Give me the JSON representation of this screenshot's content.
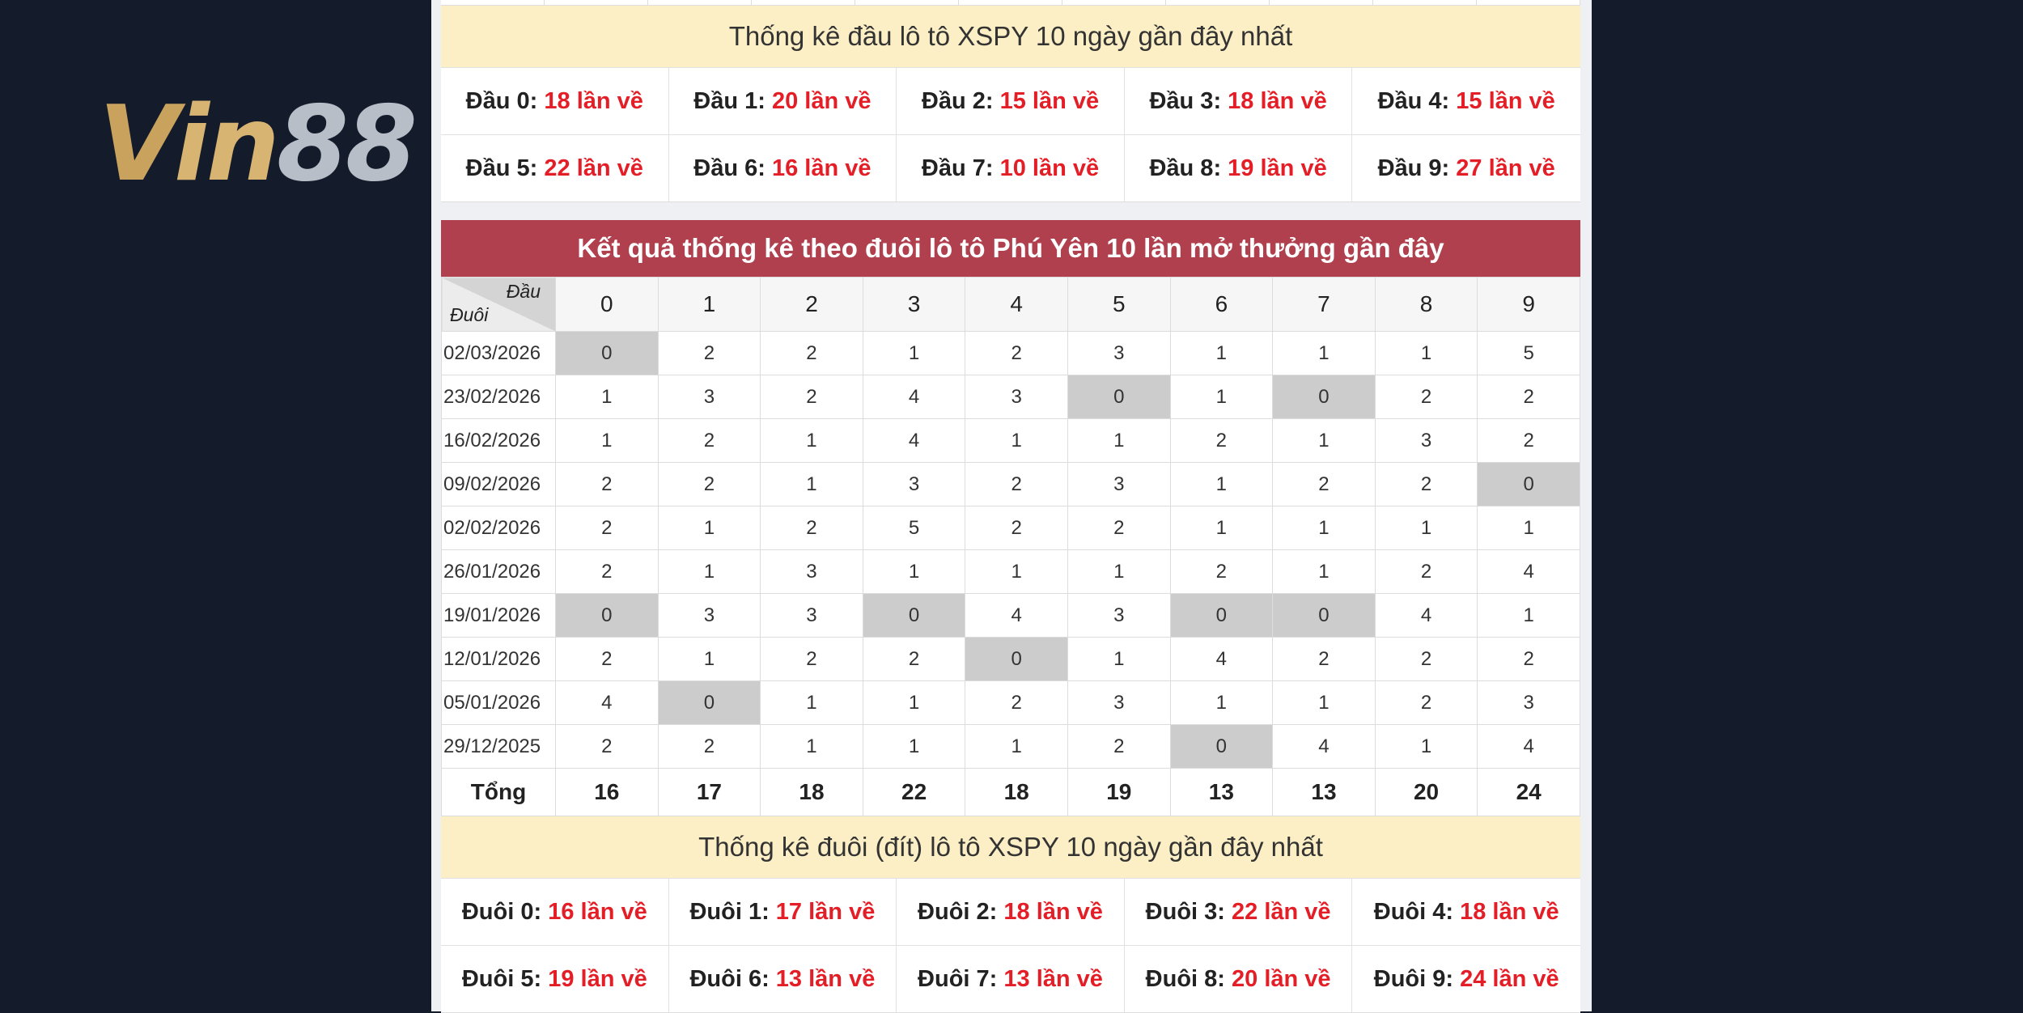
{
  "logo": {
    "part1": "V",
    "part2": "in",
    "part3": "88"
  },
  "head_stats": {
    "title": "Thống kê đầu lô tô XSPY 10 ngày gần đây nhất",
    "items": [
      {
        "label": "Đầu 0:",
        "value": "18 lần về"
      },
      {
        "label": "Đầu 1:",
        "value": "20 lần về"
      },
      {
        "label": "Đầu 2:",
        "value": "15 lần về"
      },
      {
        "label": "Đầu 3:",
        "value": "18 lần về"
      },
      {
        "label": "Đầu 4:",
        "value": "15 lần về"
      },
      {
        "label": "Đầu 5:",
        "value": "22 lần về"
      },
      {
        "label": "Đầu 6:",
        "value": "16 lần về"
      },
      {
        "label": "Đầu 7:",
        "value": "10 lần về"
      },
      {
        "label": "Đầu 8:",
        "value": "19 lần về"
      },
      {
        "label": "Đầu 9:",
        "value": "27 lần về"
      }
    ]
  },
  "table": {
    "title": "Kết quả thống kê theo đuôi lô tô Phú Yên 10 lần mở thưởng gần đây",
    "corner_top": "Đầu",
    "corner_bottom": "Đuôi",
    "columns": [
      "0",
      "1",
      "2",
      "3",
      "4",
      "5",
      "6",
      "7",
      "8",
      "9"
    ],
    "rows": [
      {
        "date": "02/03/2026",
        "cells": [
          "0",
          "2",
          "2",
          "1",
          "2",
          "3",
          "1",
          "1",
          "1",
          "5"
        ]
      },
      {
        "date": "23/02/2026",
        "cells": [
          "1",
          "3",
          "2",
          "4",
          "3",
          "0",
          "1",
          "0",
          "2",
          "2"
        ]
      },
      {
        "date": "16/02/2026",
        "cells": [
          "1",
          "2",
          "1",
          "4",
          "1",
          "1",
          "2",
          "1",
          "3",
          "2"
        ]
      },
      {
        "date": "09/02/2026",
        "cells": [
          "2",
          "2",
          "1",
          "3",
          "2",
          "3",
          "1",
          "2",
          "2",
          "0"
        ]
      },
      {
        "date": "02/02/2026",
        "cells": [
          "2",
          "1",
          "2",
          "5",
          "2",
          "2",
          "1",
          "1",
          "1",
          "1"
        ]
      },
      {
        "date": "26/01/2026",
        "cells": [
          "2",
          "1",
          "3",
          "1",
          "1",
          "1",
          "2",
          "1",
          "2",
          "4"
        ]
      },
      {
        "date": "19/01/2026",
        "cells": [
          "0",
          "3",
          "3",
          "0",
          "4",
          "3",
          "0",
          "0",
          "4",
          "1"
        ]
      },
      {
        "date": "12/01/2026",
        "cells": [
          "2",
          "1",
          "2",
          "2",
          "0",
          "1",
          "4",
          "2",
          "2",
          "2"
        ]
      },
      {
        "date": "05/01/2026",
        "cells": [
          "4",
          "0",
          "1",
          "1",
          "2",
          "3",
          "1",
          "1",
          "2",
          "3"
        ]
      },
      {
        "date": "29/12/2025",
        "cells": [
          "2",
          "2",
          "1",
          "1",
          "1",
          "2",
          "0",
          "4",
          "1",
          "4"
        ]
      }
    ],
    "total_label": "Tổng",
    "totals": [
      "16",
      "17",
      "18",
      "22",
      "18",
      "19",
      "13",
      "13",
      "20",
      "24"
    ]
  },
  "tail_stats": {
    "title": "Thống kê đuôi (đít) lô tô XSPY 10 ngày gần đây nhất",
    "items": [
      {
        "label": "Đuôi 0:",
        "value": "16 lần về"
      },
      {
        "label": "Đuôi 1:",
        "value": "17 lần về"
      },
      {
        "label": "Đuôi 2:",
        "value": "18 lần về"
      },
      {
        "label": "Đuôi 3:",
        "value": "22 lần về"
      },
      {
        "label": "Đuôi 4:",
        "value": "18 lần về"
      },
      {
        "label": "Đuôi 5:",
        "value": "19 lần về"
      },
      {
        "label": "Đuôi 6:",
        "value": "13 lần về"
      },
      {
        "label": "Đuôi 7:",
        "value": "13 lần về"
      },
      {
        "label": "Đuôi 8:",
        "value": "20 lần về"
      },
      {
        "label": "Đuôi 9:",
        "value": "24 lần về"
      }
    ]
  },
  "colors": {
    "background": "#141b2b",
    "header_red": "#b0404d",
    "yellow_bar": "#fcefc5",
    "value_red": "#e41e26",
    "zero_cell": "#cccccc"
  }
}
